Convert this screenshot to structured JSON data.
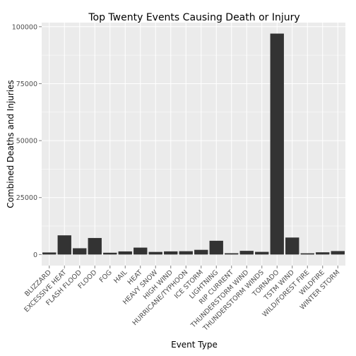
{
  "chart_data": {
    "type": "bar",
    "title": "Top Twenty Events Causing Death or Injury",
    "xlabel": "Event Type",
    "ylabel": "Combined Deaths and Injuries",
    "categories": [
      "BLIZZARD",
      "EXCESSIVE HEAT",
      "FLASH FLOOD",
      "FLOOD",
      "FOG",
      "HAIL",
      "HEAT",
      "HEAVY SNOW",
      "HIGH WIND",
      "HURRICANE/TYPHOON",
      "ICE STORM",
      "LIGHTNING",
      "RIP CURRENT",
      "THUNDERSTORM WIND",
      "THUNDERSTORM WINDS",
      "TORNADO",
      "TSTM WIND",
      "WILD/FOREST FIRE",
      "WILDFIRE",
      "WINTER STORM"
    ],
    "values": [
      906,
      8428,
      2755,
      7259,
      796,
      1376,
      3037,
      1148,
      1385,
      1461,
      2064,
      6046,
      572,
      1621,
      1173,
      96979,
      7461,
      545,
      986,
      1527
    ],
    "y_ticks": [
      0,
      25000,
      50000,
      75000,
      100000
    ],
    "y_tick_labels": [
      "0",
      "25000",
      "50000",
      "75000",
      "100000"
    ],
    "ylim": [
      -4850,
      101800
    ],
    "grid": true,
    "bar_color": "#333333",
    "panel_color": "#ebebeb",
    "grid_color": "#ffffff"
  }
}
